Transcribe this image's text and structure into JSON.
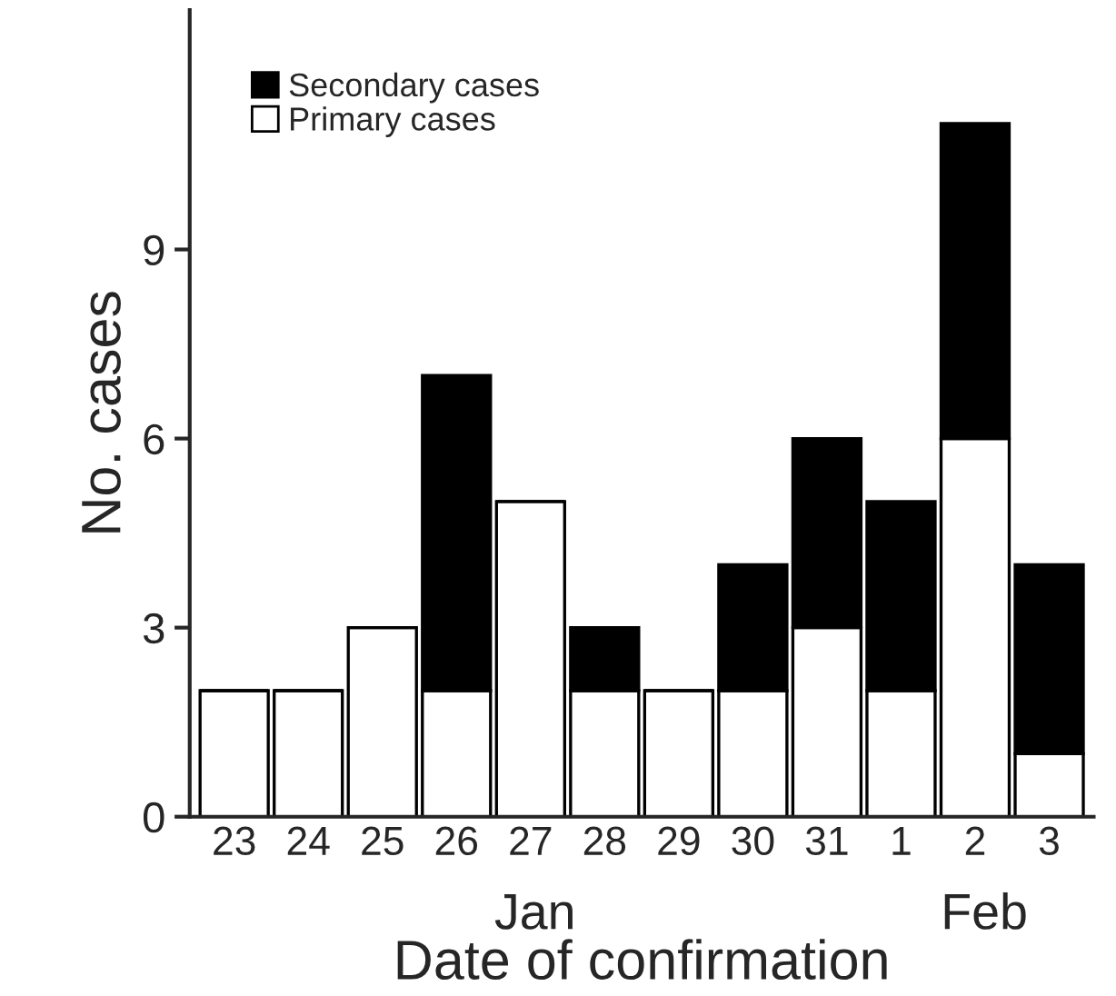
{
  "chart_data": {
    "type": "bar",
    "stacked": true,
    "xlabel": "Date of confirmation",
    "ylabel": "No. cases",
    "categories": [
      "23",
      "24",
      "25",
      "26",
      "27",
      "28",
      "29",
      "30",
      "31",
      "1",
      "2",
      "3"
    ],
    "series": [
      {
        "name": "Primary cases",
        "color": "#ffffff",
        "values": [
          2,
          2,
          3,
          2,
          5,
          2,
          2,
          2,
          3,
          2,
          6,
          1
        ]
      },
      {
        "name": "Secondary cases",
        "color": "#000000",
        "values": [
          0,
          0,
          0,
          5,
          0,
          1,
          0,
          2,
          3,
          3,
          5,
          3
        ]
      }
    ],
    "ylim": [
      0,
      12.8
    ],
    "yticks": [
      0,
      3,
      6,
      9
    ],
    "grid": false,
    "legend": "top left",
    "annotations": [
      "Jan",
      "Feb"
    ]
  }
}
